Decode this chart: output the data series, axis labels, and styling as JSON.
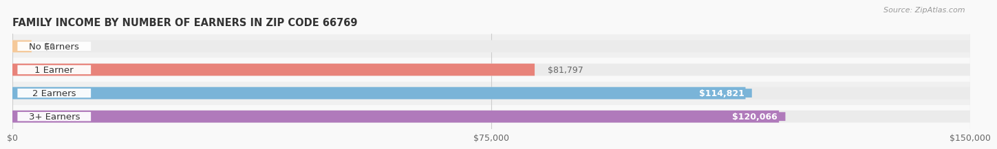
{
  "title": "FAMILY INCOME BY NUMBER OF EARNERS IN ZIP CODE 66769",
  "source": "Source: ZipAtlas.com",
  "categories": [
    "No Earners",
    "1 Earner",
    "2 Earners",
    "3+ Earners"
  ],
  "values": [
    0,
    81797,
    114821,
    120066
  ],
  "bar_colors": [
    "#f5c99a",
    "#e8837a",
    "#7ab4d8",
    "#b07abb"
  ],
  "bar_bg_color": "#ebebeb",
  "value_labels": [
    "$0",
    "$81,797",
    "$114,821",
    "$120,066"
  ],
  "value_label_colors": [
    "#666666",
    "#666666",
    "#ffffff",
    "#ffffff"
  ],
  "value_label_bg": [
    null,
    null,
    "#7ab4d8",
    "#b07abb"
  ],
  "xlim": [
    0,
    150000
  ],
  "xticks": [
    0,
    75000,
    150000
  ],
  "xtick_labels": [
    "$0",
    "$75,000",
    "$150,000"
  ],
  "background_color": "#f9f9f9",
  "bar_height": 0.52,
  "title_fontsize": 10.5,
  "label_fontsize": 9.5,
  "tick_fontsize": 9,
  "source_fontsize": 8
}
